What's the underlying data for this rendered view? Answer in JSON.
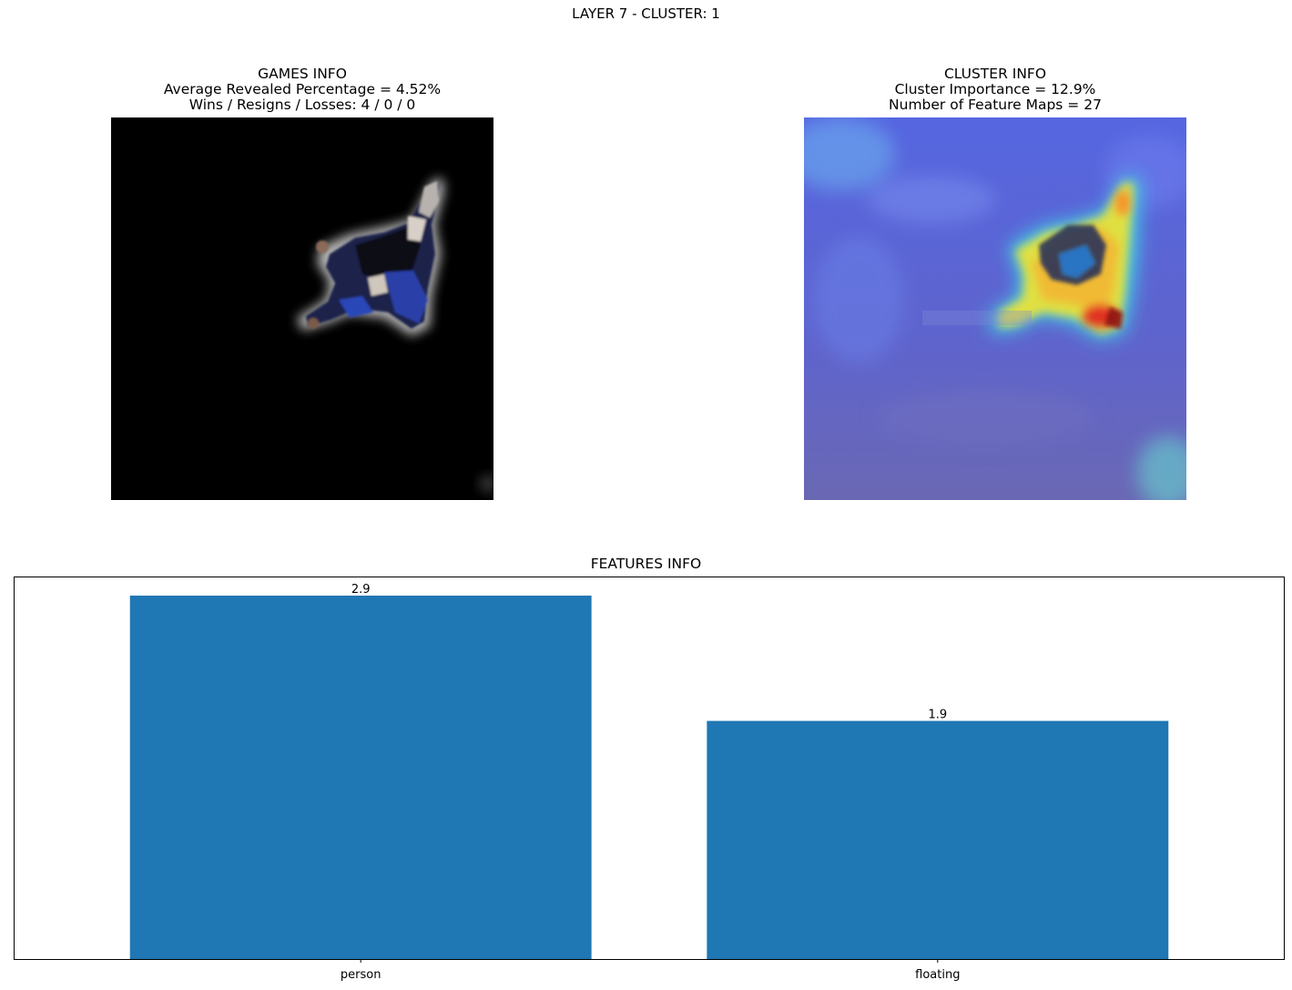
{
  "figure": {
    "suptitle": "LAYER 7 - CLUSTER: 1"
  },
  "games_panel": {
    "title": "GAMES INFO",
    "line1": "Average Revealed Percentage = 4.52%",
    "line2": "Wins / Resigns / Losses: 4 / 0 / 0",
    "image": "masked-skydiver-image"
  },
  "cluster_panel": {
    "title": "CLUSTER INFO",
    "line1": "Cluster Importance = 12.9%",
    "line2": "Number of Feature Maps = 27",
    "image": "heatmap-overlay-skydiver-image"
  },
  "colors": {
    "bar": "#1f77b4",
    "mask_background": "#000000",
    "heatmap_base": "#5c62d6"
  },
  "chart_data": {
    "type": "bar",
    "title": "FEATURES INFO",
    "categories": [
      "person",
      "floating"
    ],
    "values": [
      2.9,
      1.9
    ],
    "data_labels": [
      "2.9",
      "1.9"
    ],
    "xlabel": "",
    "ylabel": "",
    "ylim": [
      0,
      3.045
    ],
    "y_ticks_visible": false,
    "grid": false
  }
}
